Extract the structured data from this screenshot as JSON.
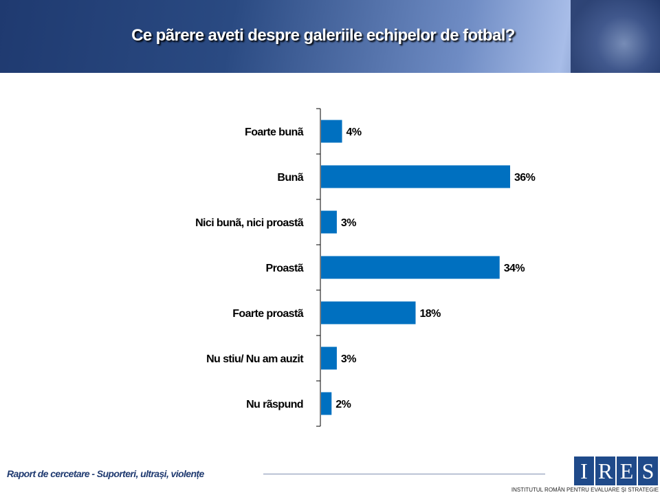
{
  "header": {
    "title": "Ce pãrere aveti despre galeriile echipelor de fotbal?"
  },
  "footer": {
    "text": "Raport de cercetare - Suporteri, ultrași, violențe",
    "logo_letters": [
      "I",
      "R",
      "E",
      "S"
    ],
    "logo_subtitle": "INSTITUTUL ROMÂN PENTRU EVALUARE ȘI STRATEGIE"
  },
  "colors": {
    "bar": "#0070c0"
  },
  "chart_data": {
    "type": "bar",
    "orientation": "horizontal",
    "categories": [
      "Foarte bunã",
      "Bunã",
      "Nici bunã, nici proastã",
      "Proastã",
      "Foarte proastã",
      "Nu stiu/ Nu am auzit",
      "Nu rãspund"
    ],
    "values": [
      4,
      36,
      3,
      34,
      18,
      3,
      2
    ],
    "value_labels": [
      "4%",
      "36%",
      "3%",
      "34%",
      "18%",
      "3%",
      "2%"
    ],
    "title": "Ce pãrere aveti despre galeriile echipelor de fotbal?",
    "xlim": [
      0,
      40
    ],
    "grid": false
  }
}
